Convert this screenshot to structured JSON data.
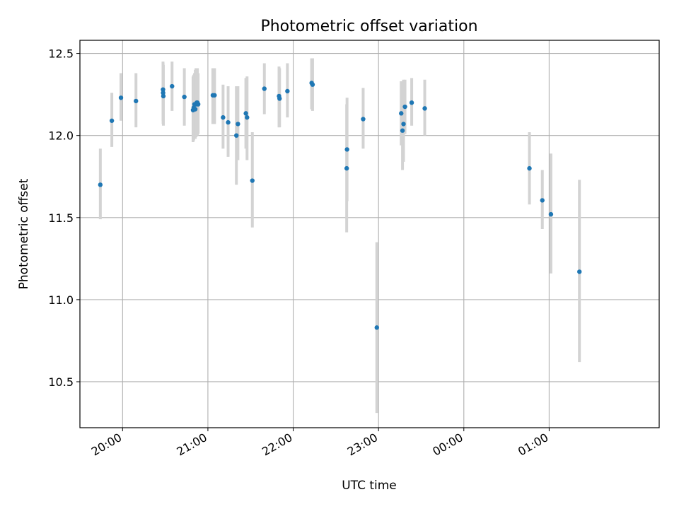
{
  "chart_data": {
    "type": "scatter",
    "title": "Photometric offset variation",
    "xlabel": "UTC time",
    "ylabel": "Photometric offset",
    "x_ticks": [
      "20:00",
      "21:00",
      "22:00",
      "23:00",
      "00:00",
      "01:00"
    ],
    "x_tick_values": [
      20.0,
      21.0,
      22.0,
      23.0,
      24.0,
      25.0
    ],
    "y_ticks": [
      "10.5",
      "11.0",
      "11.5",
      "12.0",
      "12.5"
    ],
    "y_tick_values": [
      10.5,
      11.0,
      11.5,
      12.0,
      12.5
    ],
    "xlim": [
      19.5,
      26.29
    ],
    "ylim": [
      10.22,
      12.58
    ],
    "grid": true,
    "point_color": "#1f77b4",
    "error_color": "#d3d3d3",
    "series": [
      {
        "x": [
          19.739,
          19.874,
          19.981,
          20.157,
          20.474,
          20.475,
          20.478,
          20.58,
          20.724,
          20.826,
          20.834,
          20.843,
          20.852,
          20.861,
          20.869,
          20.877,
          20.886,
          21.058,
          21.078,
          21.178,
          21.237,
          21.334,
          21.352,
          21.445,
          21.459,
          21.521,
          21.662,
          21.834,
          21.84,
          21.932,
          22.216,
          22.227,
          22.627,
          22.631,
          22.98,
          22.82,
          23.266,
          23.281,
          23.293,
          23.31,
          23.389,
          23.542,
          24.769,
          24.92,
          25.021,
          25.355
        ],
        "y": [
          11.7,
          12.09,
          12.23,
          12.21,
          12.28,
          12.26,
          12.24,
          12.3,
          12.235,
          12.155,
          12.17,
          12.19,
          12.16,
          12.19,
          12.2,
          12.2,
          12.19,
          12.245,
          12.245,
          12.11,
          12.08,
          12.0,
          12.07,
          12.135,
          12.11,
          11.725,
          12.285,
          12.24,
          12.225,
          12.27,
          12.32,
          12.31,
          11.8,
          11.915,
          10.83,
          12.1,
          12.135,
          12.03,
          12.07,
          12.175,
          12.2,
          12.165,
          11.8,
          11.605,
          11.52,
          11.17
        ],
        "error_low": [
          11.49,
          11.93,
          12.09,
          12.05,
          12.09,
          12.07,
          12.06,
          12.15,
          12.06,
          11.96,
          11.97,
          11.98,
          11.98,
          11.99,
          12.0,
          12.0,
          12.01,
          12.07,
          12.07,
          11.92,
          11.87,
          11.7,
          11.85,
          11.92,
          11.85,
          11.44,
          12.13,
          12.05,
          12.05,
          12.11,
          12.16,
          12.15,
          11.41,
          11.6,
          10.31,
          11.92,
          11.94,
          11.79,
          11.84,
          12.01,
          12.06,
          12.0,
          11.58,
          11.43,
          11.16,
          10.62
        ],
        "error_high": [
          11.92,
          12.26,
          12.38,
          12.38,
          12.45,
          12.44,
          12.43,
          12.45,
          12.41,
          12.36,
          12.37,
          12.38,
          12.4,
          12.41,
          12.41,
          12.41,
          12.38,
          12.41,
          12.41,
          12.31,
          12.3,
          12.3,
          12.3,
          12.35,
          12.36,
          12.02,
          12.44,
          12.42,
          12.41,
          12.44,
          12.47,
          12.47,
          12.19,
          12.23,
          11.35,
          12.29,
          12.33,
          12.33,
          12.34,
          12.34,
          12.35,
          12.34,
          12.02,
          11.79,
          11.89,
          11.73
        ]
      }
    ]
  }
}
